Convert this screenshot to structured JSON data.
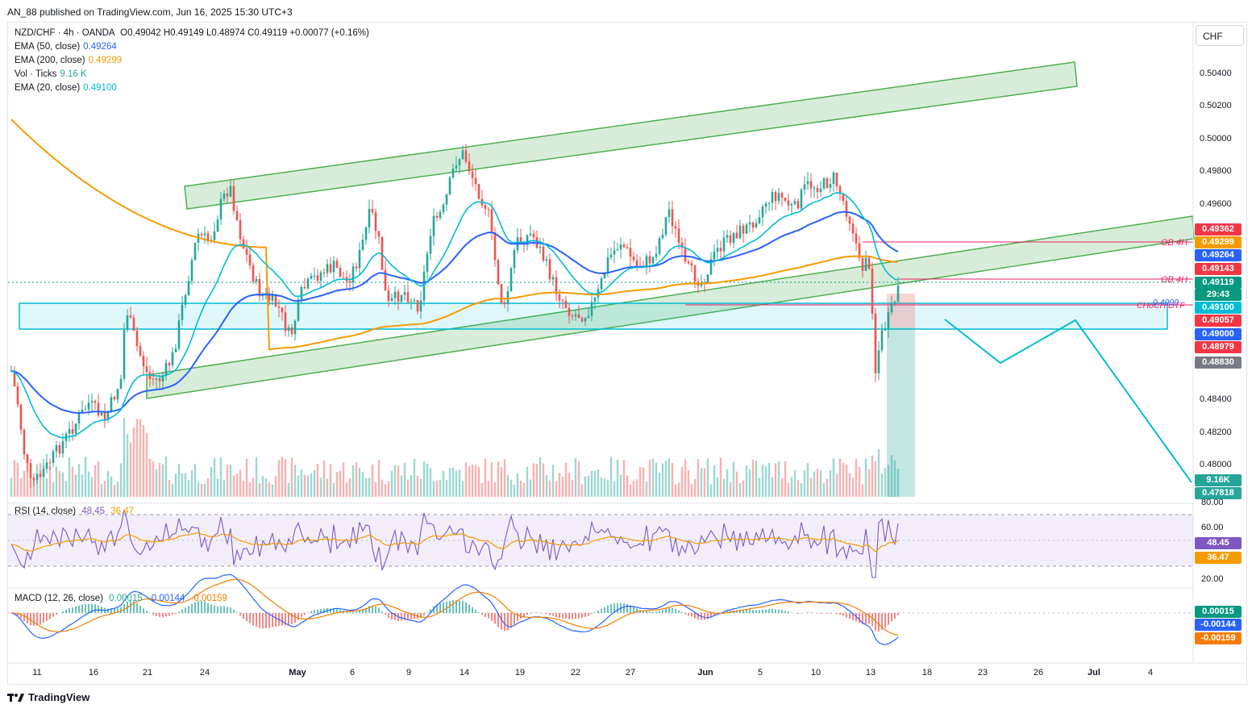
{
  "header": {
    "publisher": "AN_88 published on TradingView.com, Jun 16, 2025 15:30 UTC+3"
  },
  "symbol": {
    "title": "NZD/CHF · 4h · OANDA",
    "ohlc": "O0.49042 H0.49149 L0.48974 C0.49119 +0.00077 (+0.16%)"
  },
  "legend": [
    {
      "label": "EMA (50, close)",
      "value": "0.49264",
      "color": "#2962ff"
    },
    {
      "label": "EMA (200, close)",
      "value": "0.49299",
      "color": "#f59b00"
    },
    {
      "label": "Vol · Ticks",
      "value": "9.16 K",
      "color": "#26a69a"
    },
    {
      "label": "EMA (20, close)",
      "value": "0.49100",
      "color": "#00bcd4"
    }
  ],
  "currency_button": "CHF",
  "price_axis": [
    "0.50400",
    "0.50200",
    "0.50000",
    "0.49800",
    "0.49600",
    "0.48400",
    "0.48200",
    "0.48000"
  ],
  "price_tags": [
    {
      "value": "0.49362",
      "color": "#f23645"
    },
    {
      "value": "0.49299",
      "color": "#f59b00"
    },
    {
      "value": "0.49264",
      "color": "#2962ff"
    },
    {
      "value": "0.49143",
      "color": "#f23645"
    },
    {
      "value": "0.49119",
      "color": "#089981"
    },
    {
      "value": "29:43",
      "color": "#089981"
    },
    {
      "value": "0.49100",
      "color": "#00bcd4"
    },
    {
      "value": "0.49057",
      "color": "#f23645"
    },
    {
      "value": "0.49000",
      "color": "#2962ff"
    },
    {
      "value": "0.48979",
      "color": "#f23645"
    },
    {
      "value": "0.48830",
      "color": "#787b86"
    },
    {
      "value": "9.16K",
      "color": "#26a69a"
    },
    {
      "value": "0.47818",
      "color": "#26a69a"
    }
  ],
  "annotations": {
    "ob_upper": "OB 4H",
    "ob_lower": "OB 4H",
    "choch": "CHoCH DTF",
    "level": "0.4900"
  },
  "rsi": {
    "label": "RSI (14, close)",
    "value": "48.45",
    "ma_value": "36.47",
    "axis": [
      "80.00",
      "60.00",
      "20.00"
    ]
  },
  "macd": {
    "label": "MACD (12, 26, close)",
    "hist": "0.00015",
    "macd": "-0.00144",
    "signal": "-0.00159"
  },
  "date_axis": [
    "11",
    "16",
    "21",
    "24",
    "May",
    "6",
    "9",
    "14",
    "19",
    "22",
    "27",
    "Jun",
    "5",
    "10",
    "13",
    "18",
    "23",
    "26",
    "Jul",
    "4"
  ],
  "brand": "TradingView",
  "colors": {
    "bull": "#26a69a",
    "bear": "#ef5350",
    "channel": "#4caf50",
    "zone": "#00bcd4",
    "rsi": "#7e57c2"
  }
}
